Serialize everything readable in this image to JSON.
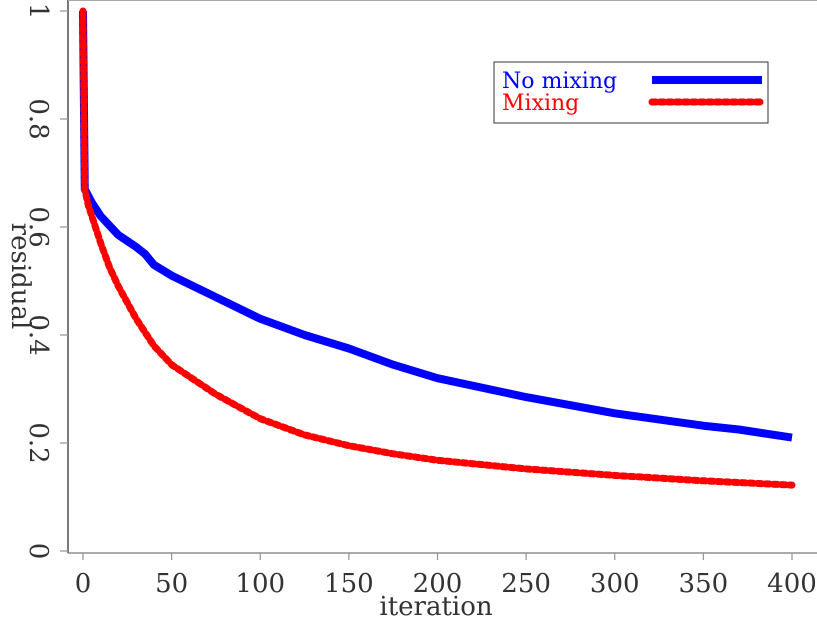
{
  "chart_data": {
    "type": "line",
    "title": "",
    "xlabel": "iteration",
    "ylabel": "residual",
    "xlim": [
      -6,
      410
    ],
    "ylim": [
      0,
      1
    ],
    "xticks": [
      0,
      50,
      100,
      150,
      200,
      250,
      300,
      350,
      400
    ],
    "xtick_labels": [
      "0",
      "50",
      "100",
      "150",
      "200",
      "250",
      "300",
      "350",
      "400"
    ],
    "yticks": [
      0,
      0.2,
      0.4,
      0.6,
      0.8,
      1
    ],
    "ytick_labels": [
      "0",
      "0.2",
      "0.4",
      "0.6",
      "0.8",
      "1"
    ],
    "grid": false,
    "legend_position": "top-right",
    "series": [
      {
        "name": "No mixing",
        "color": "#0000ff",
        "style": "solid",
        "x": [
          0,
          1,
          5,
          10,
          20,
          30,
          35,
          40,
          50,
          75,
          100,
          125,
          150,
          175,
          200,
          250,
          300,
          350,
          370,
          400
        ],
        "y": [
          1.0,
          0.67,
          0.645,
          0.62,
          0.585,
          0.563,
          0.55,
          0.53,
          0.51,
          0.47,
          0.43,
          0.4,
          0.375,
          0.345,
          0.32,
          0.285,
          0.255,
          0.232,
          0.225,
          0.21
        ]
      },
      {
        "name": "Mixing",
        "color": "#ff0000",
        "style": "dotted",
        "x": [
          0,
          1,
          3,
          5,
          10,
          15,
          20,
          30,
          40,
          50,
          75,
          100,
          125,
          150,
          175,
          200,
          250,
          300,
          350,
          400
        ],
        "y": [
          1.0,
          0.67,
          0.64,
          0.62,
          0.57,
          0.525,
          0.49,
          0.43,
          0.38,
          0.345,
          0.29,
          0.245,
          0.215,
          0.195,
          0.18,
          0.168,
          0.152,
          0.14,
          0.13,
          0.122
        ]
      }
    ]
  }
}
